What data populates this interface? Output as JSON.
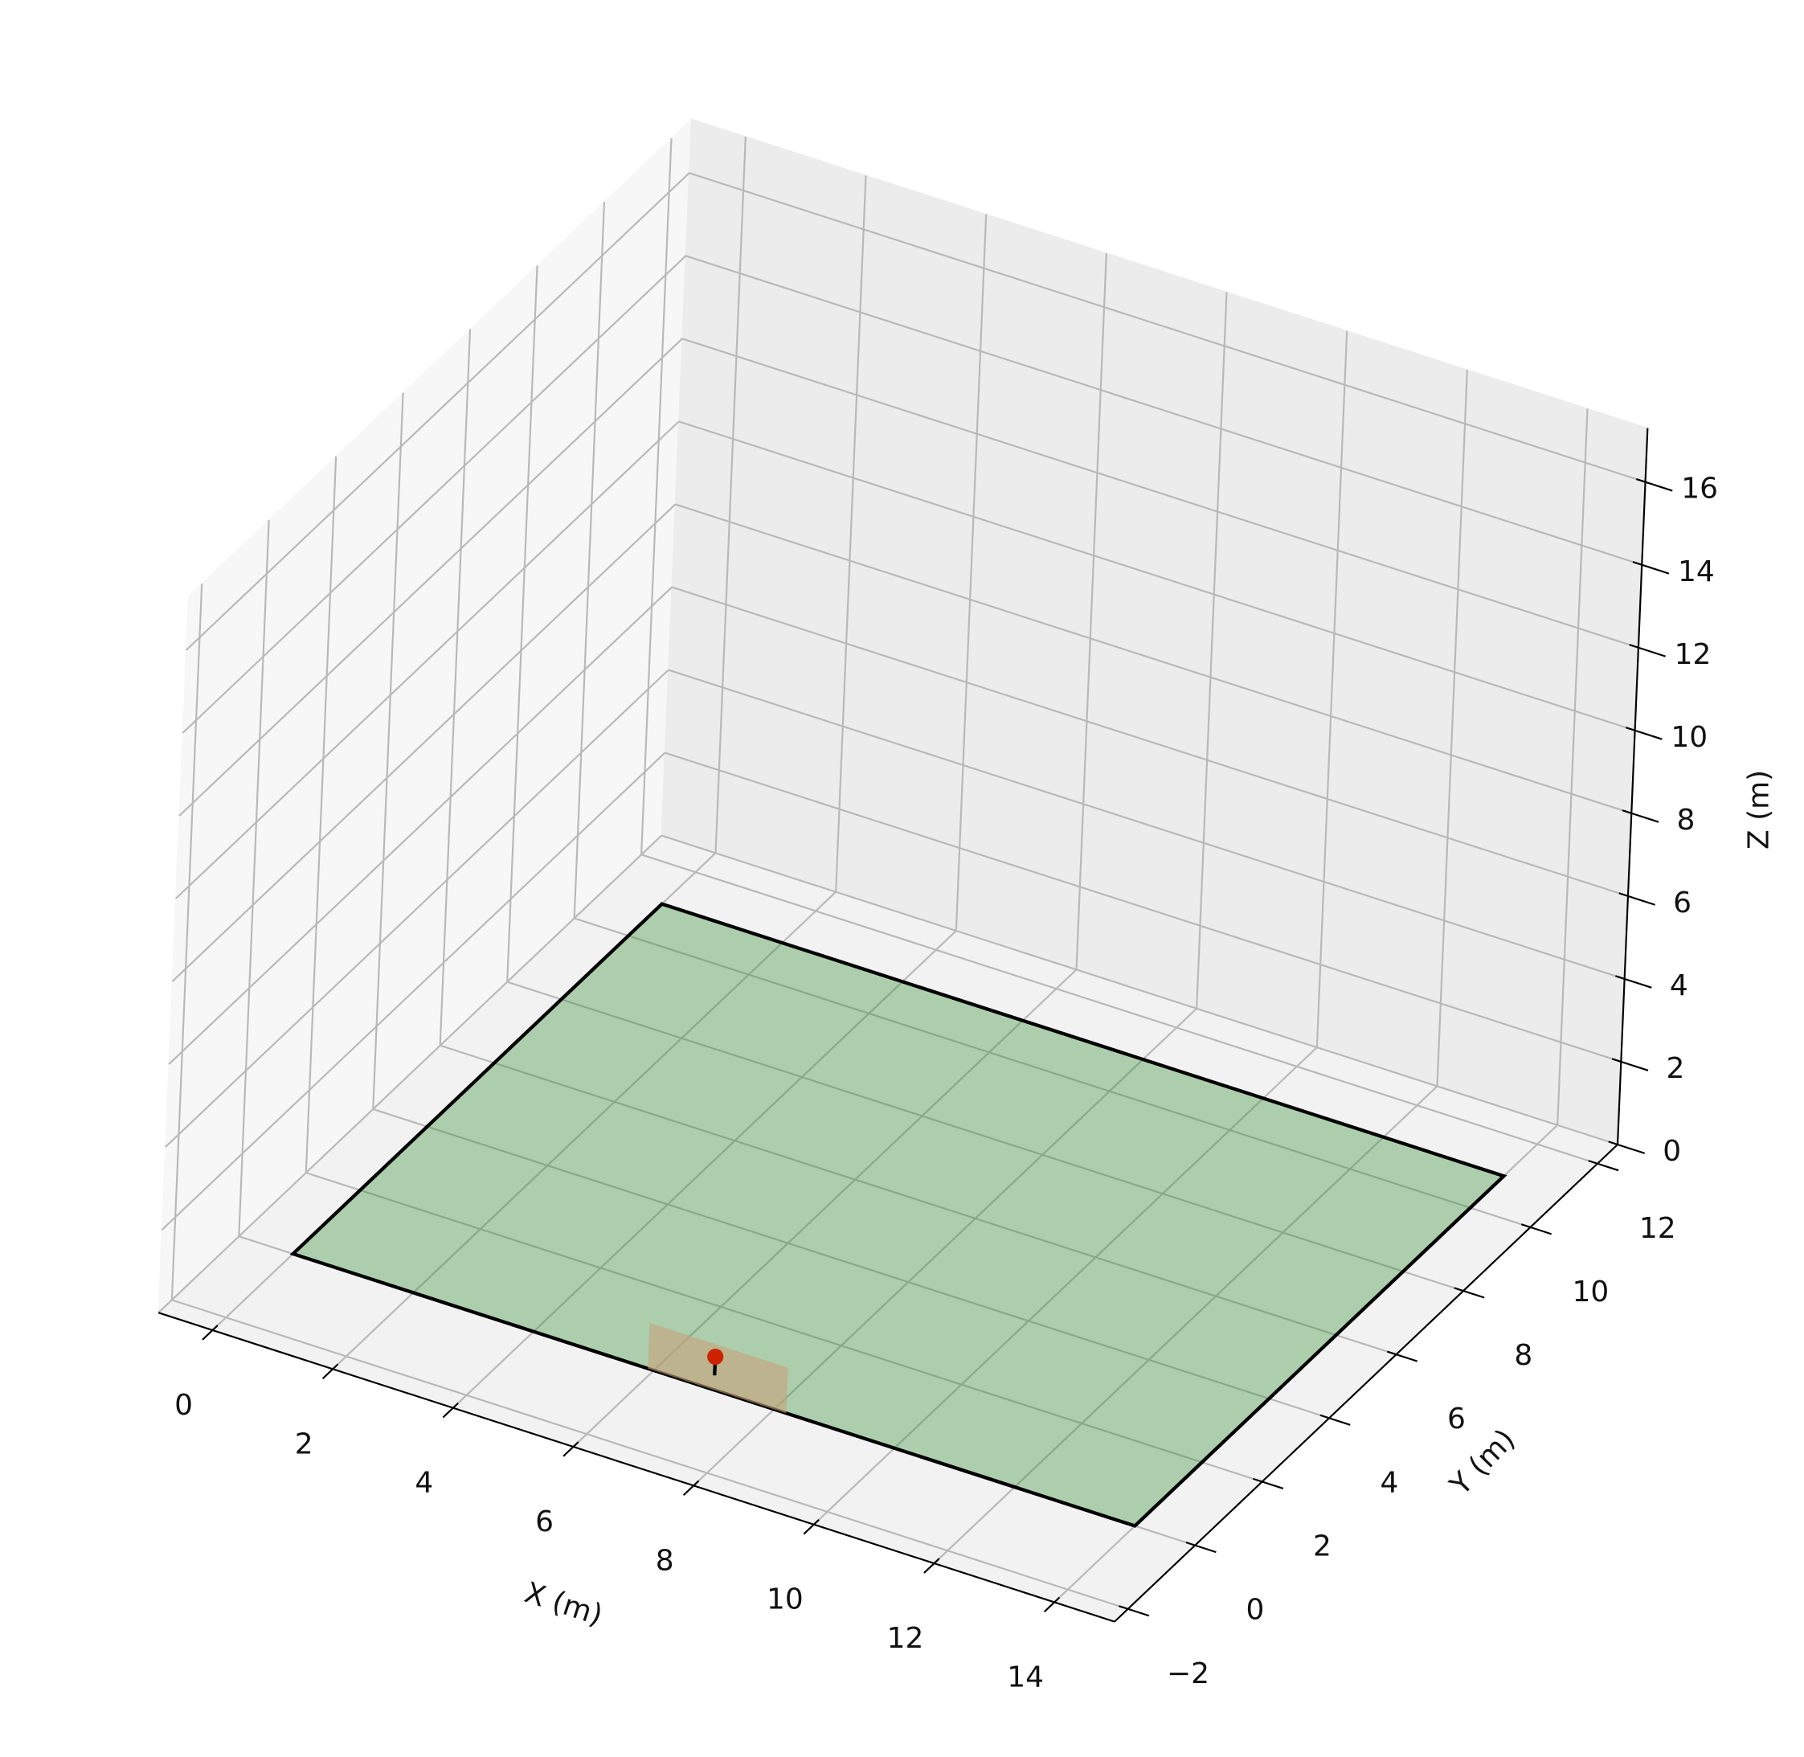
{
  "chart_data": {
    "type": "scatter3d",
    "xlabel": "X (m)",
    "ylabel": "Y (m)",
    "zlabel": "Z (m)",
    "xlim": [
      -0.9,
      15
    ],
    "ylim": [
      -2.4,
      12.6
    ],
    "zlim": [
      0,
      17.3
    ],
    "xticks": [
      0,
      2,
      4,
      6,
      8,
      10,
      12,
      14
    ],
    "yticks": [
      {
        "value": -2,
        "label": "−2"
      },
      0,
      2,
      4,
      6,
      8,
      10,
      12
    ],
    "zticks": [
      0,
      2,
      4,
      6,
      8,
      10,
      12,
      14,
      16
    ],
    "grid": true,
    "patches": [
      {
        "x": [
          0,
          14
        ],
        "y": [
          0,
          11
        ],
        "z": [
          0,
          0
        ],
        "color": "#2e8b2e",
        "alpha": 0.35,
        "edgecolor": "#000000"
      },
      {
        "x": [
          5.9,
          8.2
        ],
        "y": [
          0,
          0
        ],
        "z": [
          0,
          1.1
        ],
        "color": "#c8a27a",
        "alpha": 0.6
      }
    ],
    "lines": [
      {
        "x": [
          7,
          7
        ],
        "y": [
          0,
          0
        ],
        "z": [
          0.35,
          0.8
        ],
        "color": "#000000"
      }
    ],
    "points": {
      "x": [
        7
      ],
      "y": [
        0
      ],
      "z": [
        0.8
      ],
      "color": "#cc2200"
    }
  }
}
